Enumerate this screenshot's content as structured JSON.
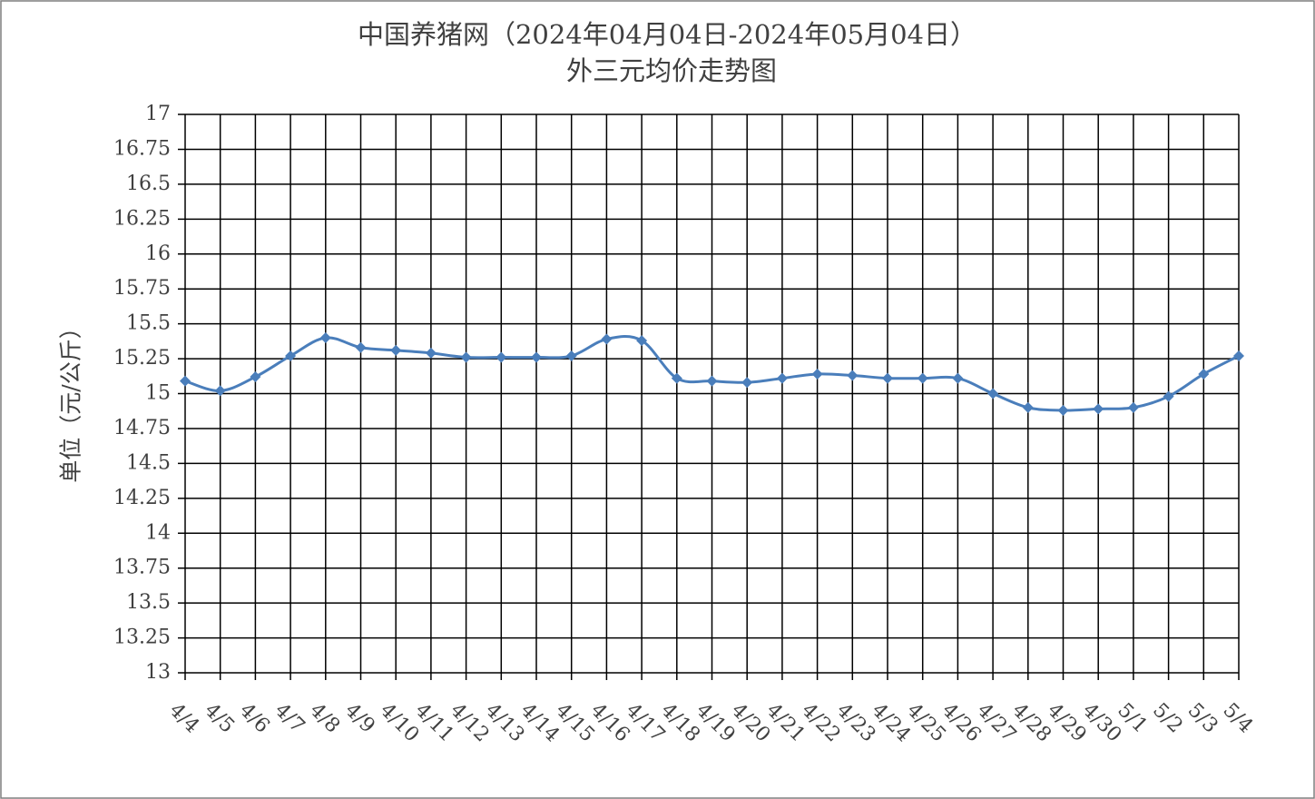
{
  "chart_data": {
    "type": "line",
    "title": "中国养猪网（2024年04月04日-2024年05月04日）",
    "subtitle": "外三元均价走势图",
    "y_label": "单位（元/公斤）",
    "categories": [
      "4/4",
      "4/5",
      "4/6",
      "4/7",
      "4/8",
      "4/9",
      "4/10",
      "4/11",
      "4/12",
      "4/13",
      "4/14",
      "4/15",
      "4/16",
      "4/17",
      "4/18",
      "4/19",
      "4/20",
      "4/21",
      "4/22",
      "4/23",
      "4/24",
      "4/25",
      "4/26",
      "4/27",
      "4/28",
      "4/29",
      "4/30",
      "5/1",
      "5/2",
      "5/3",
      "5/4"
    ],
    "values": [
      15.09,
      15.02,
      15.12,
      15.27,
      15.4,
      15.33,
      15.31,
      15.29,
      15.26,
      15.26,
      15.26,
      15.27,
      15.39,
      15.38,
      15.11,
      15.09,
      15.08,
      15.11,
      15.14,
      15.13,
      15.11,
      15.11,
      15.11,
      15.0,
      14.9,
      14.88,
      14.89,
      14.9,
      14.98,
      15.14,
      15.27
    ],
    "color": "#4a7ebb",
    "ylim": [
      13,
      17
    ],
    "yticks": [
      13,
      13.25,
      13.5,
      13.75,
      14,
      14.25,
      14.5,
      14.75,
      15,
      15.25,
      15.5,
      15.75,
      16,
      16.25,
      16.5,
      16.75,
      17
    ],
    "grid": true
  }
}
